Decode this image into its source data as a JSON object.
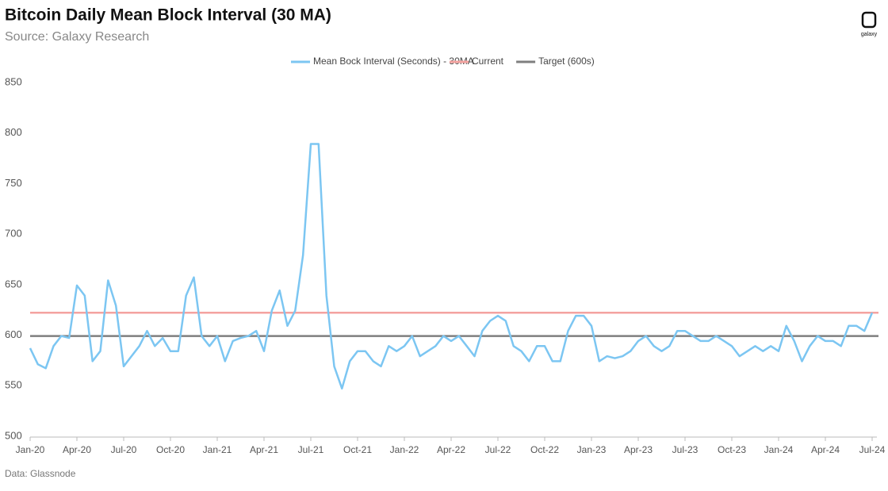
{
  "chart_data": {
    "type": "line",
    "title": "Bitcoin Daily Mean Block Interval (30 MA)",
    "subtitle": "Source: Galaxy Research",
    "source": "Data: Glassnode",
    "logo": "galaxy",
    "categories": [
      "Jan-20",
      null,
      null,
      null,
      null,
      null,
      "Apr-20",
      null,
      null,
      null,
      null,
      null,
      "Jul-20",
      null,
      null,
      null,
      null,
      null,
      "Oct-20",
      null,
      null,
      null,
      null,
      null,
      "Jan-21",
      null,
      null,
      null,
      null,
      null,
      "Apr-21",
      null,
      null,
      null,
      null,
      null,
      "Jul-21",
      null,
      null,
      null,
      null,
      null,
      "Oct-21",
      null,
      null,
      null,
      null,
      null,
      "Jan-22",
      null,
      null,
      null,
      null,
      null,
      "Apr-22",
      null,
      null,
      null,
      null,
      null,
      "Jul-22",
      null,
      null,
      null,
      null,
      null,
      "Oct-22",
      null,
      null,
      null,
      null,
      null,
      "Jan-23",
      null,
      null,
      null,
      null,
      null,
      "Apr-23",
      null,
      null,
      null,
      null,
      null,
      "Jul-23",
      null,
      null,
      null,
      null,
      null,
      "Oct-23",
      null,
      null,
      null,
      null,
      null,
      "Jan-24",
      null,
      null,
      null,
      null,
      null,
      "Apr-24",
      null,
      null,
      null,
      null,
      null,
      "Jul-24"
    ],
    "series": [
      {
        "name": "Mean Bock Interval (Seconds) - 30MA",
        "color": "#7cc6f2",
        "values": [
          588,
          572,
          568,
          590,
          600,
          598,
          650,
          640,
          575,
          585,
          655,
          630,
          570,
          580,
          590,
          605,
          590,
          598,
          585,
          585,
          640,
          658,
          600,
          590,
          600,
          575,
          595,
          598,
          600,
          605,
          585,
          625,
          645,
          610,
          625,
          680,
          790,
          790,
          640,
          570,
          548,
          575,
          585,
          585,
          575,
          570,
          590,
          585,
          590,
          600,
          580,
          585,
          590,
          600,
          595,
          600,
          590,
          580,
          605,
          615,
          620,
          615,
          590,
          585,
          575,
          590,
          590,
          575,
          575,
          605,
          620,
          620,
          610,
          575,
          580,
          578,
          580,
          585,
          595,
          600,
          590,
          585,
          590,
          605,
          605,
          600,
          595,
          595,
          600,
          595,
          590,
          580,
          585,
          590,
          585,
          590,
          585,
          610,
          595,
          575,
          590,
          600,
          595,
          595,
          590,
          610,
          610,
          605,
          623
        ]
      }
    ],
    "reference_lines": [
      {
        "name": "Current",
        "value": 623,
        "color": "#f4a3a0"
      },
      {
        "name": "Target (600s)",
        "value": 600,
        "color": "#7f7f7f"
      }
    ],
    "ylim": [
      500,
      850
    ],
    "yticks": [
      500,
      550,
      600,
      650,
      700,
      750,
      800,
      850
    ]
  }
}
